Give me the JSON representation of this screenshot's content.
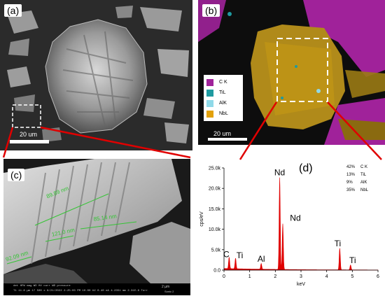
{
  "panels": {
    "a": {
      "label": "(a)",
      "scalebar": "20 um"
    },
    "b": {
      "label": "(b)",
      "scalebar": "20 um",
      "legend": [
        {
          "name": "C K",
          "color": "#a0229a"
        },
        {
          "name": "TiL",
          "color": "#1f9aa0"
        },
        {
          "name": "AlK",
          "color": "#8fd9e8"
        },
        {
          "name": "NbL",
          "color": "#e2a10c"
        }
      ]
    },
    "c": {
      "label": "(c)",
      "measurements": [
        "89.89 nm",
        "85.14 nm",
        "121.0 nm",
        "92.09 nm"
      ],
      "infobar": {
        "headers": [
          "det",
          "HFW",
          "mag",
          "WD",
          "HV",
          "curr",
          "WD",
          "pressure"
        ],
        "values": [
          "T1",
          "11.8 µm",
          "17 500 x",
          "8/21/2022 2:25:03 PM",
          "10.00 kV",
          "0.40 nA",
          "4.2351 mm",
          "2.31E-6 Torr"
        ],
        "scale": "2 µm",
        "extra": "Sonic 2"
      }
    },
    "d": {
      "label": "(d)"
    }
  },
  "chart_data": {
    "type": "line",
    "xlabel": "keV",
    "ylabel": "cps/eV",
    "xlim": [
      0,
      6
    ],
    "ylim": [
      0,
      25
    ],
    "xticks": [
      "0",
      "1",
      "2",
      "3",
      "4",
      "5",
      "6"
    ],
    "yticks": [
      "0.0",
      "5.0k",
      "10.0k",
      "15.0k",
      "20.0k",
      "25.0k"
    ],
    "peaks": [
      {
        "x": 0.2,
        "y": 2.8,
        "label": "C"
      },
      {
        "x": 0.45,
        "y": 2.6,
        "label": "Ti"
      },
      {
        "x": 1.45,
        "y": 1.4,
        "label": "Al"
      },
      {
        "x": 2.17,
        "y": 22.5,
        "label": "Nd"
      },
      {
        "x": 2.29,
        "y": 11.2,
        "label": "Nd"
      },
      {
        "x": 4.51,
        "y": 5.3,
        "label": "Ti"
      },
      {
        "x": 4.93,
        "y": 1.2,
        "label": "Ti"
      }
    ],
    "composition": [
      {
        "pct": "42%",
        "name": "C K"
      },
      {
        "pct": "13%",
        "name": "TiL"
      },
      {
        "pct": "9%",
        "name": "AlK"
      },
      {
        "pct": "35%",
        "name": "NbL"
      }
    ],
    "series_color": "#e00000"
  }
}
